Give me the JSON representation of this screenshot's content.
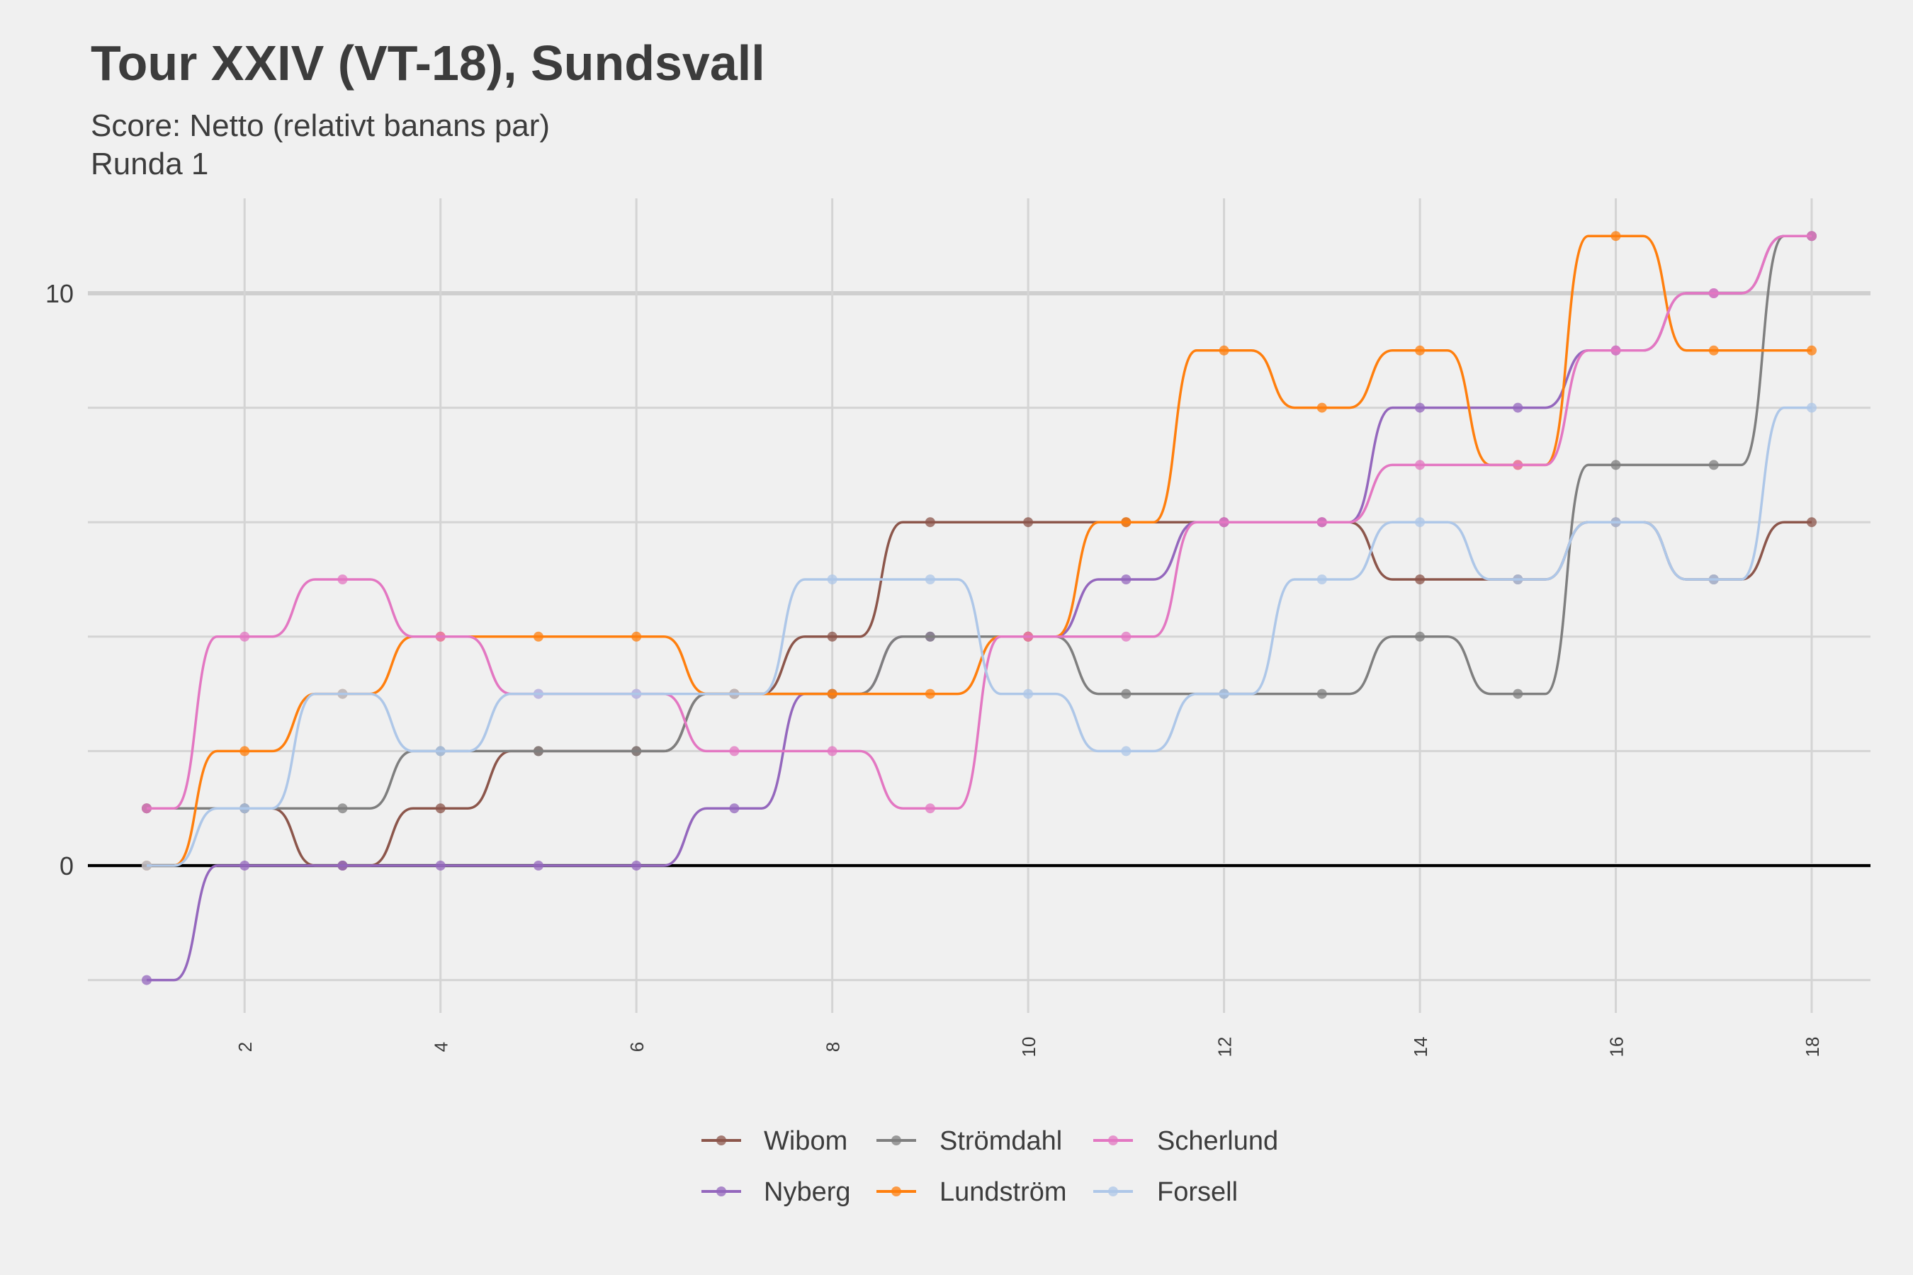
{
  "chart_data": {
    "type": "line",
    "title": "Tour XXIV (VT-18), Sundsvall",
    "subtitle": [
      "Score: Netto (relativt banans par)",
      "Runda 1"
    ],
    "xlabel": "",
    "ylabel": "",
    "x": [
      1,
      2,
      3,
      4,
      5,
      6,
      7,
      8,
      9,
      10,
      11,
      12,
      13,
      14,
      15,
      16,
      17,
      18
    ],
    "xticks": [
      2,
      4,
      6,
      8,
      10,
      12,
      14,
      16,
      18
    ],
    "yticks": [
      0,
      10
    ],
    "ylim": [
      -2,
      10.9
    ],
    "xlim": [
      1,
      18
    ],
    "grid": true,
    "legend_position": "bottom",
    "series": [
      {
        "name": "Wibom",
        "color": "#8c564b",
        "values": [
          1,
          1,
          0,
          1,
          2,
          2,
          3,
          4,
          6,
          6,
          6,
          6,
          6,
          5,
          5,
          6,
          5,
          6
        ]
      },
      {
        "name": "Nyberg",
        "color": "#9467bd",
        "values": [
          -2,
          0,
          0,
          0,
          0,
          0,
          1,
          3,
          4,
          4,
          5,
          6,
          6,
          8,
          8,
          9,
          10,
          11
        ]
      },
      {
        "name": "Strömdahl",
        "color": "#7f7f7f",
        "values": [
          1,
          1,
          1,
          2,
          2,
          2,
          3,
          3,
          4,
          4,
          3,
          3,
          3,
          4,
          3,
          7,
          7,
          11
        ]
      },
      {
        "name": "Lundström",
        "color": "#ff7f0e",
        "values": [
          0,
          2,
          3,
          4,
          4,
          4,
          3,
          3,
          3,
          4,
          6,
          9,
          8,
          9,
          7,
          11,
          9,
          9
        ]
      },
      {
        "name": "Scherlund",
        "color": "#e377c2",
        "values": [
          1,
          4,
          5,
          4,
          3,
          3,
          2,
          2,
          1,
          4,
          4,
          6,
          6,
          7,
          7,
          9,
          10,
          11
        ]
      },
      {
        "name": "Forsell",
        "color": "#aec7e8",
        "values": [
          0,
          1,
          3,
          2,
          3,
          3,
          3,
          5,
          5,
          3,
          2,
          3,
          5,
          6,
          5,
          6,
          5,
          8
        ]
      }
    ]
  }
}
